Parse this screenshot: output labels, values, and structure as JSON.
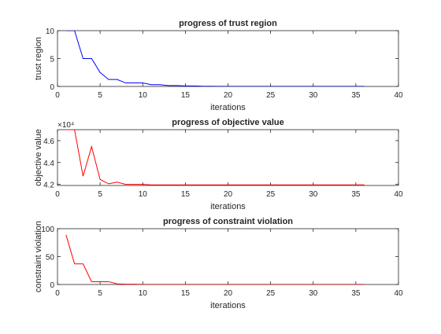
{
  "chart_data": [
    {
      "type": "line",
      "title": "progress of trust region",
      "xlabel": "iterations",
      "ylabel": "trust region",
      "xlim": [
        0,
        40
      ],
      "ylim": [
        0,
        10
      ],
      "xticks": [
        0,
        5,
        10,
        15,
        20,
        25,
        30,
        35,
        40
      ],
      "yticks": [
        0,
        5,
        10
      ],
      "ytick_labels": [
        "0",
        "5",
        "10"
      ],
      "exponent": "",
      "color": "#0000ff",
      "grid": false,
      "series": [
        {
          "x": [
            1,
            2,
            3,
            4,
            5,
            6,
            7,
            8,
            9,
            10,
            11,
            12,
            13,
            14,
            15,
            16,
            17,
            18,
            19,
            20,
            21,
            22,
            23,
            24,
            25,
            26,
            27,
            28,
            29,
            30,
            31,
            32,
            33,
            34,
            35,
            36
          ],
          "values": [
            10,
            10,
            5,
            5,
            2.5,
            1.25,
            1.25,
            0.625,
            0.625,
            0.625,
            0.3125,
            0.3125,
            0.16,
            0.16,
            0.08,
            0.08,
            0.04,
            0.04,
            0.02,
            0.02,
            0.01,
            0.01,
            0.01,
            0.01,
            0.01,
            0.01,
            0.01,
            0.01,
            0.01,
            0.01,
            0.01,
            0.01,
            0.01,
            0.01,
            0.01,
            0.01
          ]
        }
      ]
    },
    {
      "type": "line",
      "title": "progress of objective value",
      "xlabel": "iterations",
      "ylabel": "objective value",
      "xlim": [
        0,
        40
      ],
      "ylim": [
        41900,
        47000
      ],
      "xticks": [
        0,
        5,
        10,
        15,
        20,
        25,
        30,
        35,
        40
      ],
      "yticks": [
        42000,
        44000,
        46000
      ],
      "ytick_labels": [
        "4.2",
        "4.4",
        "4.6"
      ],
      "exponent": "×10⁴",
      "color": "#ff0000",
      "grid": false,
      "series": [
        {
          "x": [
            1,
            2,
            3,
            4,
            5,
            6,
            7,
            8,
            9,
            10,
            11,
            12,
            13,
            14,
            15,
            16,
            17,
            18,
            19,
            20,
            21,
            22,
            23,
            24,
            25,
            26,
            27,
            28,
            29,
            30,
            31,
            32,
            33,
            34,
            35,
            36
          ],
          "values": [
            47000,
            47000,
            42750,
            45450,
            42450,
            42050,
            42200,
            42000,
            42000,
            42000,
            41950,
            41950,
            41950,
            41950,
            41950,
            41950,
            41950,
            41950,
            41950,
            41950,
            41950,
            41950,
            41950,
            41950,
            41950,
            41950,
            41950,
            41950,
            41950,
            41950,
            41950,
            41950,
            41950,
            41950,
            41950,
            41950
          ]
        }
      ]
    },
    {
      "type": "line",
      "title": "progress of constraint violation",
      "xlabel": "iterations",
      "ylabel": "constraint violation",
      "xlim": [
        0,
        40
      ],
      "ylim": [
        0,
        100
      ],
      "xticks": [
        0,
        5,
        10,
        15,
        20,
        25,
        30,
        35,
        40
      ],
      "yticks": [
        0,
        50,
        100
      ],
      "ytick_labels": [
        "0",
        "50",
        "100"
      ],
      "exponent": "",
      "color": "#ff0000",
      "grid": false,
      "series": [
        {
          "x": [
            1,
            2,
            3,
            4,
            5,
            6,
            7,
            8,
            9,
            10,
            11,
            12,
            13,
            14,
            15,
            16,
            17,
            18,
            19,
            20,
            21,
            22,
            23,
            24,
            25,
            26,
            27,
            28,
            29,
            30,
            31,
            32,
            33,
            34,
            35,
            36
          ],
          "values": [
            89,
            37,
            37,
            5,
            5,
            5,
            1,
            0.5,
            0.5,
            0.2,
            0.1,
            0.1,
            0.1,
            0.1,
            0.1,
            0.1,
            0.1,
            0.1,
            0.1,
            0.1,
            0.1,
            0.1,
            0.1,
            0.1,
            0.1,
            0.1,
            0.1,
            0.1,
            0.1,
            0.1,
            0.1,
            0.1,
            0.1,
            0.1,
            0.1,
            0.1
          ]
        }
      ]
    }
  ]
}
